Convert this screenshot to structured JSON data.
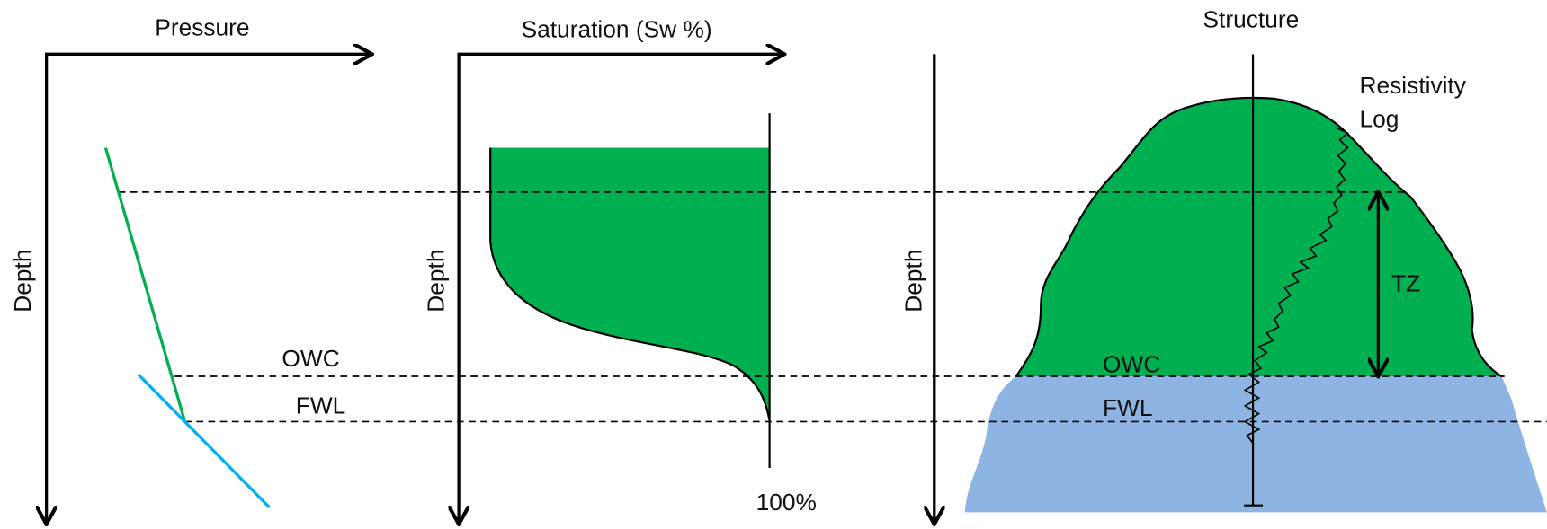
{
  "panels": [
    {
      "axis_x_label": "Pressure",
      "axis_y_label": "Depth",
      "owc_label": "OWC",
      "fwl_label": "FWL"
    },
    {
      "axis_x_label": "Saturation (Sw %)",
      "axis_y_label": "Depth",
      "end_label": "100%"
    },
    {
      "title": "Structure",
      "axis_y_label": "Depth",
      "log_label": [
        "Resistivity",
        "Log"
      ],
      "tz_label": "TZ",
      "owc_label": "OWC",
      "fwl_label": "FWL"
    }
  ]
}
